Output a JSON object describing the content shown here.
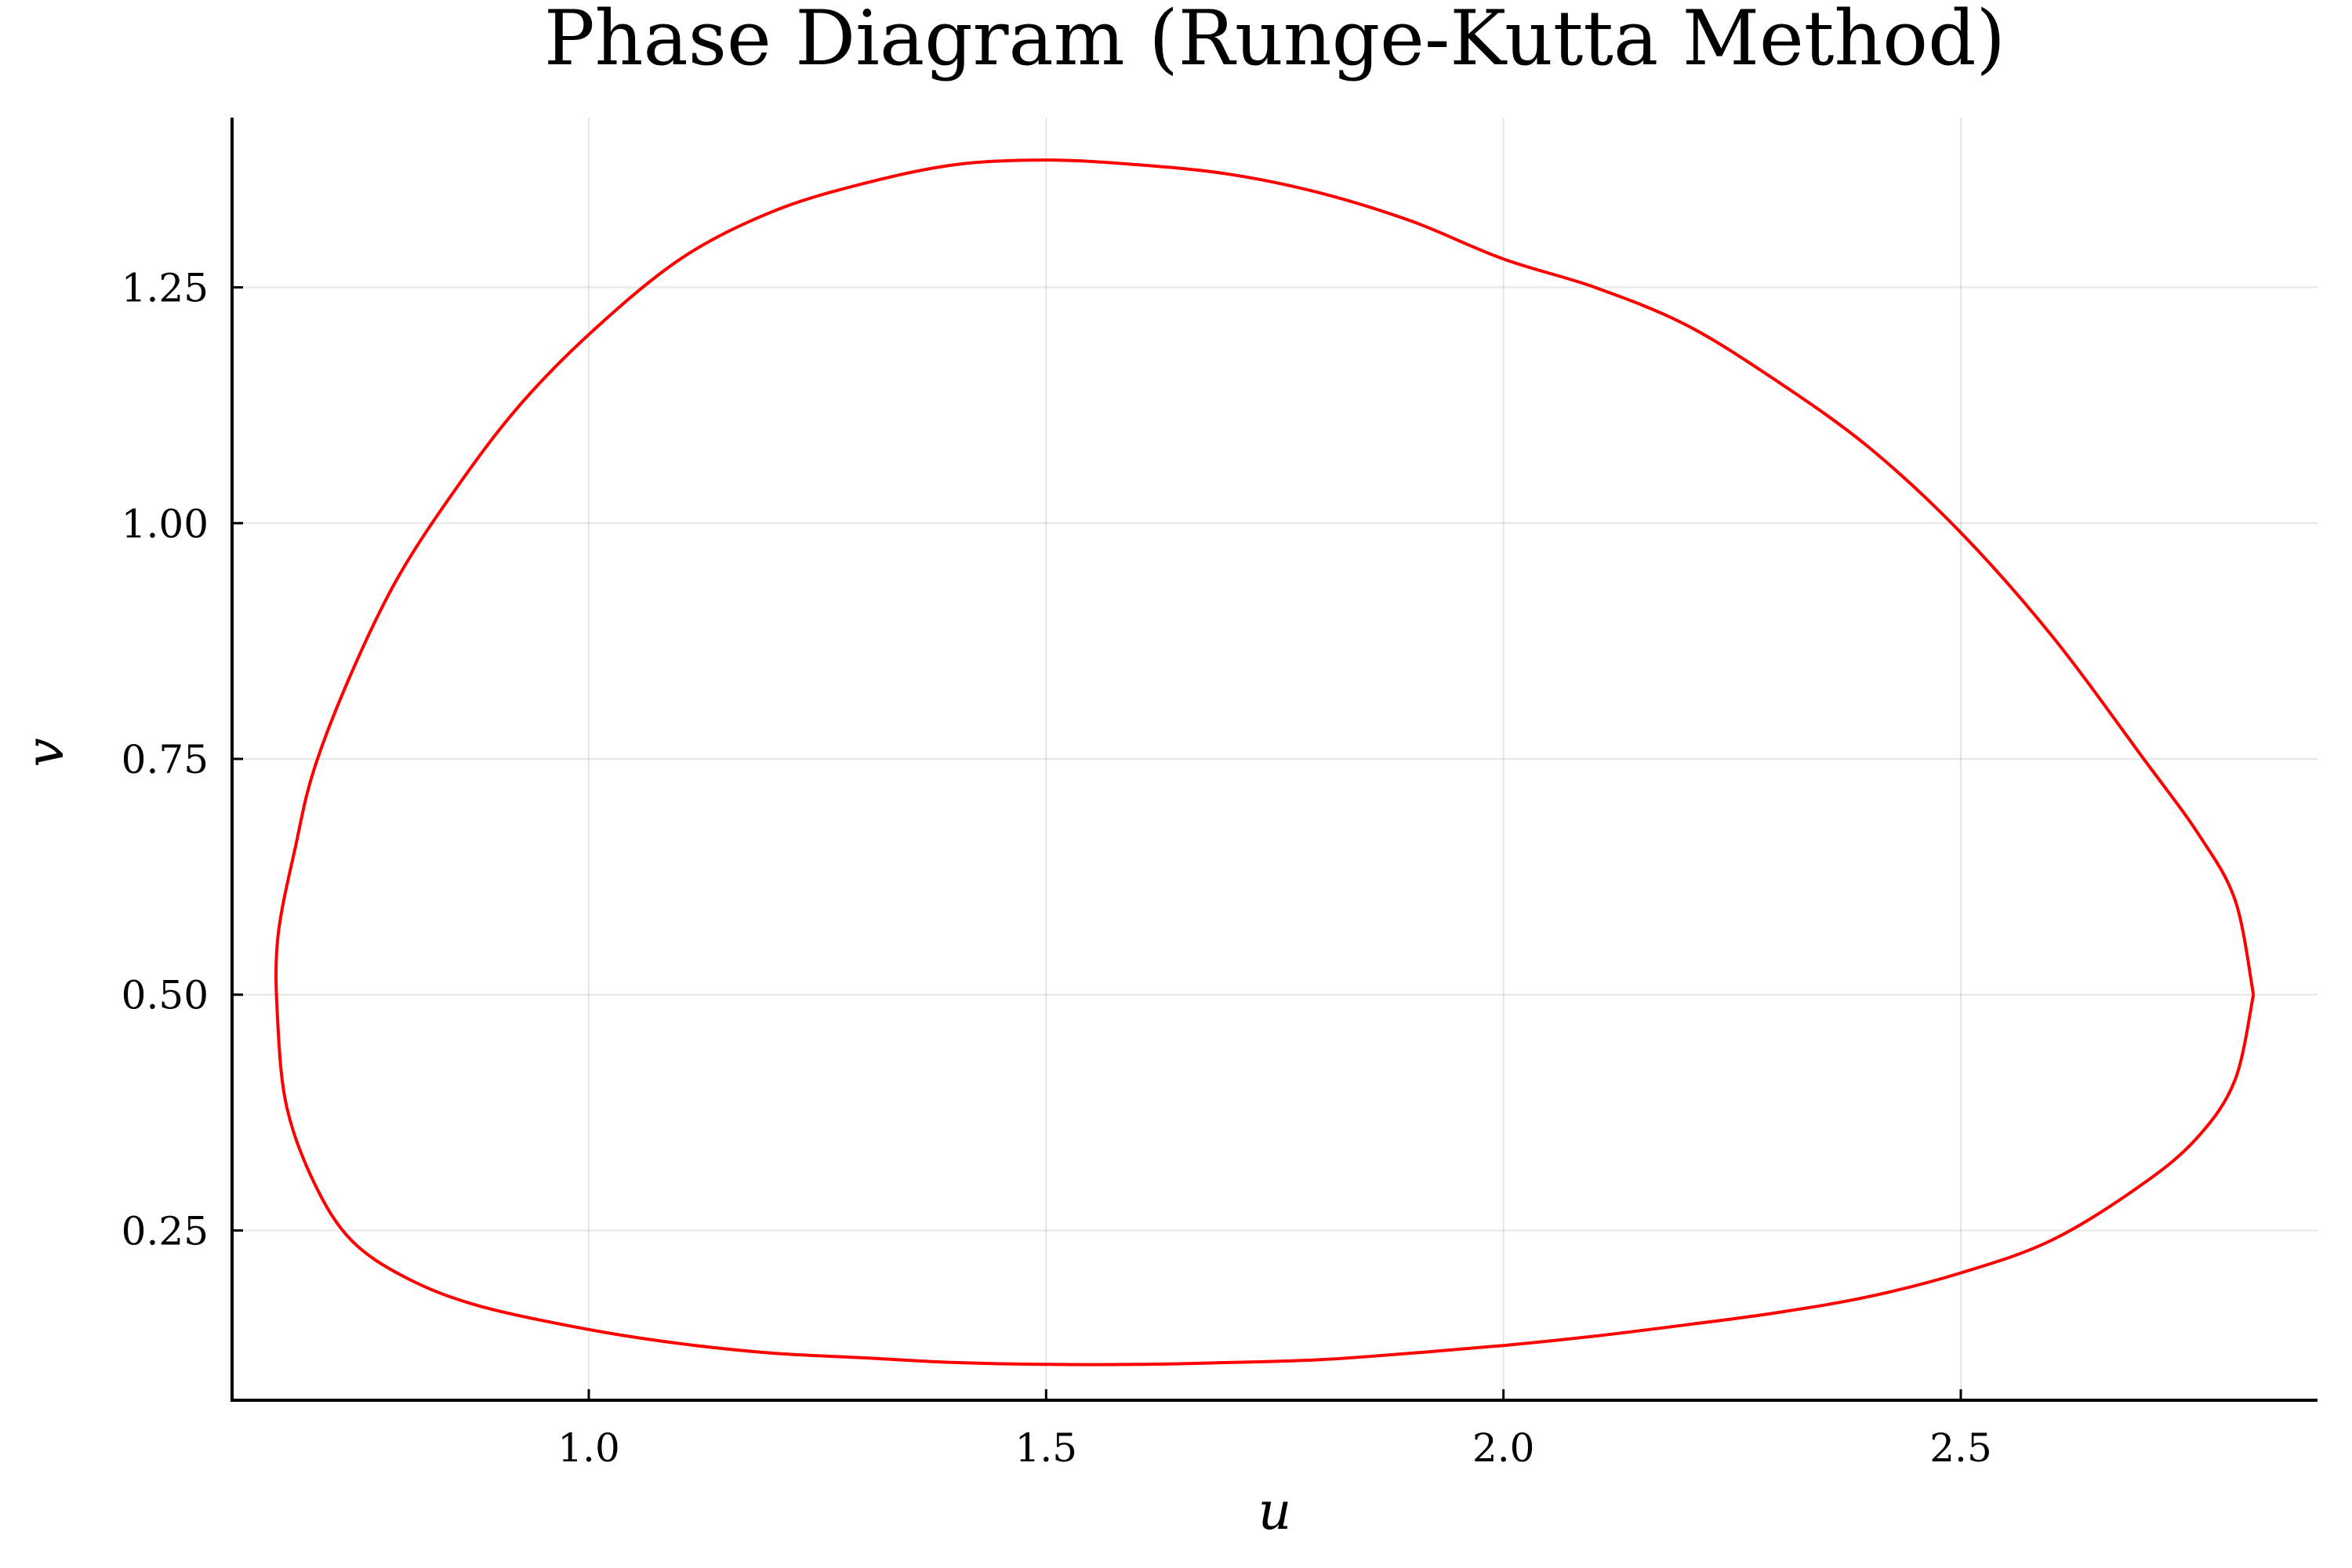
{
  "chart_data": {
    "type": "line",
    "title": "Phase Diagram (Runge-Kutta Method)",
    "xlabel": "u",
    "ylabel": "v",
    "xlim": [
      0.61,
      2.89
    ],
    "ylim": [
      0.07,
      1.43
    ],
    "xticks": [
      1.0,
      1.5,
      2.0,
      2.5
    ],
    "xtick_labels": [
      "1.0",
      "1.5",
      "2.0",
      "2.5"
    ],
    "yticks": [
      0.25,
      0.5,
      0.75,
      1.0,
      1.25
    ],
    "ytick_labels": [
      "0.25",
      "0.50",
      "0.75",
      "1.00",
      "1.25"
    ],
    "grid": true,
    "legend": "none",
    "series": [
      {
        "color": "#ff0000",
        "x": [
          2.82,
          2.8,
          2.76,
          2.7,
          2.6,
          2.5,
          2.4,
          2.3,
          2.2,
          2.1,
          2.0,
          1.9,
          1.8,
          1.7,
          1.6,
          1.5,
          1.4,
          1.3,
          1.2,
          1.1,
          1.0,
          0.92,
          0.85,
          0.79,
          0.74,
          0.7,
          0.68,
          0.66,
          0.66,
          0.67,
          0.7,
          0.74,
          0.8,
          0.88,
          1.0,
          1.1,
          1.2,
          1.3,
          1.4,
          1.5,
          1.6,
          1.7,
          1.8,
          1.9,
          2.0,
          2.1,
          2.2,
          2.3,
          2.4,
          2.5,
          2.6,
          2.7,
          2.76,
          2.8,
          2.82
        ],
        "y": [
          0.5,
          0.6,
          0.67,
          0.75,
          0.88,
          0.99,
          1.08,
          1.15,
          1.21,
          1.25,
          1.28,
          1.32,
          1.35,
          1.37,
          1.38,
          1.385,
          1.38,
          1.36,
          1.33,
          1.28,
          1.2,
          1.12,
          1.03,
          0.94,
          0.84,
          0.74,
          0.66,
          0.56,
          0.47,
          0.38,
          0.3,
          0.24,
          0.2,
          0.17,
          0.145,
          0.13,
          0.12,
          0.115,
          0.11,
          0.108,
          0.108,
          0.11,
          0.113,
          0.12,
          0.128,
          0.138,
          0.15,
          0.163,
          0.18,
          0.205,
          0.24,
          0.3,
          0.35,
          0.41,
          0.5
        ]
      }
    ]
  }
}
